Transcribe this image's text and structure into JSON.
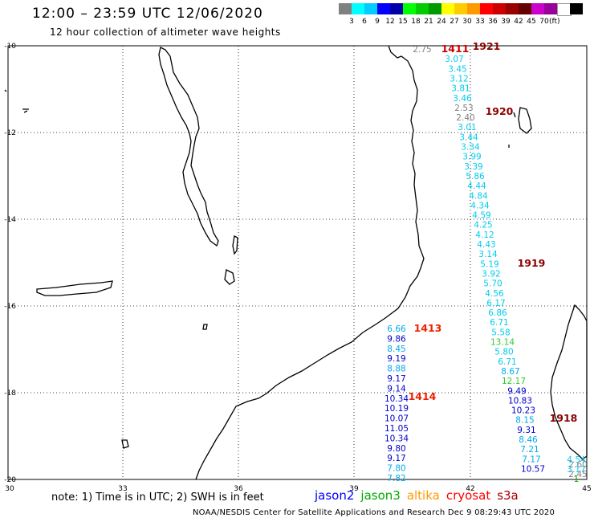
{
  "title": "12:00 – 23:59 UTC 12/06/2020",
  "subtitle": "12 hour collection of altimeter wave heights",
  "scale": {
    "colors": [
      "#808080",
      "#00ffff",
      "#00ccff",
      "#0000ff",
      "#0000aa",
      "#00ff00",
      "#00cc00",
      "#009900",
      "#ffff00",
      "#ffcc00",
      "#ff9900",
      "#ff0000",
      "#cc0000",
      "#990000",
      "#660000",
      "#cc00cc",
      "#990099",
      "#ffffff",
      "#000000"
    ],
    "labels": [
      "3",
      "6",
      "9",
      "12",
      "15",
      "18",
      "21",
      "24",
      "27",
      "30",
      "33",
      "36",
      "39",
      "42",
      "45",
      "70"
    ],
    "unit": "(ft)"
  },
  "axes": {
    "lon_labels": [
      "30",
      "33",
      "36",
      "39",
      "42",
      "45"
    ],
    "lat_labels": [
      "-10",
      "-12",
      "-14",
      "-16",
      "-18",
      "-20"
    ]
  },
  "passes": [
    {
      "label": "1921",
      "color": "#8b0000"
    },
    {
      "label": "1411",
      "color": "#cc0000"
    },
    {
      "label": "1920",
      "color": "#8b0000"
    },
    {
      "label": "1919",
      "color": "#8b0000"
    },
    {
      "label": "1413",
      "color": "#ee2200"
    },
    {
      "label": "1414",
      "color": "#ee2200"
    },
    {
      "label": "1918",
      "color": "#8b0000"
    }
  ],
  "tracks": [
    {
      "values": [
        [
          "2.75",
          "#808080"
        ],
        [
          "3.07",
          "#00ccee"
        ],
        [
          "3.45",
          "#00ccee"
        ],
        [
          "3.12",
          "#00ccee"
        ],
        [
          "3.81",
          "#00ccee"
        ],
        [
          "3.46",
          "#00ccee"
        ],
        [
          "2.53",
          "#808080"
        ],
        [
          "2.40",
          "#808080"
        ],
        [
          "3.01",
          "#00ccee"
        ],
        [
          "3.44",
          "#00ccee"
        ],
        [
          "3.34",
          "#00ccee"
        ],
        [
          "3.99",
          "#00ccee"
        ],
        [
          "3.39",
          "#00ccee"
        ],
        [
          "5.86",
          "#00ccee"
        ],
        [
          "4.44",
          "#00ccee"
        ],
        [
          "4.84",
          "#00ccee"
        ],
        [
          "4.34",
          "#00ccee"
        ],
        [
          "4.59",
          "#00ccee"
        ],
        [
          "4.25",
          "#00ccee"
        ],
        [
          "4.12",
          "#00ccee"
        ],
        [
          "4.43",
          "#00ccee"
        ],
        [
          "3.14",
          "#00ccee"
        ],
        [
          "5.19",
          "#00ccee"
        ],
        [
          "3.92",
          "#00ccee"
        ],
        [
          "5.70",
          "#00ccee"
        ],
        [
          "4.56",
          "#00ccee"
        ],
        [
          "6.17",
          "#00ccee"
        ],
        [
          "6.86",
          "#00ccee"
        ],
        [
          "6.71",
          "#00ccee"
        ],
        [
          "5.58",
          "#00ccee"
        ],
        [
          "13.14",
          "#33cc33"
        ],
        [
          "5.80",
          "#00ccee"
        ],
        [
          "6.71",
          "#00ccee"
        ],
        [
          "8.67",
          "#00aaee"
        ],
        [
          "12.17",
          "#33cc33"
        ],
        [
          "9.49",
          "#0000cc"
        ],
        [
          "10.83",
          "#0000cc"
        ],
        [
          "10.23",
          "#0000cc"
        ],
        [
          "8.15",
          "#00aaee"
        ],
        [
          "9.31",
          "#0000cc"
        ],
        [
          "8.46",
          "#00aaee"
        ],
        [
          "7.21",
          "#00aaee"
        ],
        [
          "7.17",
          "#00aaee"
        ],
        [
          "10.57",
          "#0000cc"
        ]
      ]
    },
    {
      "values": [
        [
          "6.66",
          "#00aaee"
        ],
        [
          "9.86",
          "#0000cc"
        ],
        [
          "8.45",
          "#00aaee"
        ],
        [
          "9.19",
          "#0000cc"
        ],
        [
          "8.88",
          "#00aaee"
        ],
        [
          "9.17",
          "#0000cc"
        ],
        [
          "9.14",
          "#0000cc"
        ],
        [
          "10.34",
          "#0000cc"
        ],
        [
          "10.19",
          "#0000cc"
        ],
        [
          "10.07",
          "#0000cc"
        ],
        [
          "11.05",
          "#0000cc"
        ],
        [
          "10.34",
          "#0000cc"
        ],
        [
          "9.80",
          "#0000cc"
        ],
        [
          "9.17",
          "#0000cc"
        ],
        [
          "7.80",
          "#00aaee"
        ],
        [
          "7.82",
          "#00aaee"
        ]
      ]
    },
    {
      "values": [
        [
          "4.54",
          "#00ccee"
        ],
        [
          "2.60",
          "#808080"
        ],
        [
          "3.17",
          "#00ccee"
        ],
        [
          "2.45",
          "#808080"
        ],
        [
          "1",
          "#00aa00"
        ]
      ]
    }
  ],
  "note": "note:  1) Time is in UTC;  2) SWH is in feet",
  "legend": [
    {
      "label": "jason2",
      "color": "#0000ff"
    },
    {
      "label": "jason3",
      "color": "#00aa00"
    },
    {
      "label": "altika",
      "color": "#ff9900"
    },
    {
      "label": "cryosat",
      "color": "#ff0000"
    },
    {
      "label": "s3a",
      "color": "#aa0000"
    }
  ],
  "credit": "NOAA/NESDIS Center for Satellite Applications and Research    Dec  9 08:29:43 UTC 2020"
}
